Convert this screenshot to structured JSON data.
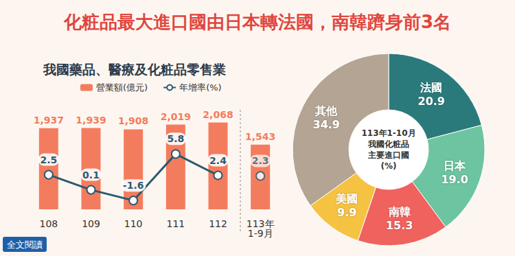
{
  "title": "化粧品最大進口國由日本轉法國，南韓躋身前3名",
  "footer": "全文閱讀",
  "chart_data": [
    {
      "type": "bar",
      "title": "我國藥品、醫療及化粧品零售業",
      "categories": [
        "108",
        "109",
        "110",
        "111",
        "112",
        "113年\n1-9月"
      ],
      "series": [
        {
          "name": "營業額(億元)",
          "type": "bar",
          "color": "#f47c5e",
          "values": [
            1937,
            1939,
            1908,
            2019,
            2068,
            1543
          ],
          "value_labels": [
            "1,937",
            "1,939",
            "1,908",
            "2,019",
            "2,068",
            "1,543"
          ]
        },
        {
          "name": "年增率(%)",
          "type": "line",
          "axis": "y2",
          "color": "#2b5a70",
          "marker": "circle",
          "values": [
            2.5,
            0.1,
            -1.6,
            5.8,
            2.4,
            null
          ]
        },
        {
          "type": "scatter",
          "axis": "y2",
          "color": "#2b5a70",
          "marker": "circle",
          "values": [
            null,
            null,
            null,
            null,
            null,
            2.3
          ]
        }
      ],
      "ylim": [
        0,
        2700
      ],
      "yticks": [
        0,
        900,
        1800,
        2700
      ],
      "y2lim": [
        -3,
        15
      ],
      "y2ticks": [
        -3,
        0,
        3,
        6,
        9,
        12,
        15
      ],
      "data_labels": true,
      "tick_labels": "x",
      "legend": "top",
      "grid": false
    },
    {
      "type": "pie",
      "title": "113年1-10月\n我國化粧品\n主要進口國\n(%)",
      "categories": [
        "法國",
        "日本",
        "南韓",
        "美國",
        "其他"
      ],
      "values": [
        20.9,
        19.0,
        15.3,
        9.9,
        34.9
      ],
      "value_labels": [
        "20.9",
        "19.0",
        "15.3",
        "9.9",
        "34.9"
      ],
      "colors": [
        "#2a7a7c",
        "#6cc4a0",
        "#f0625d",
        "#f5c242",
        "#b3a493"
      ],
      "data_labels": true
    }
  ]
}
